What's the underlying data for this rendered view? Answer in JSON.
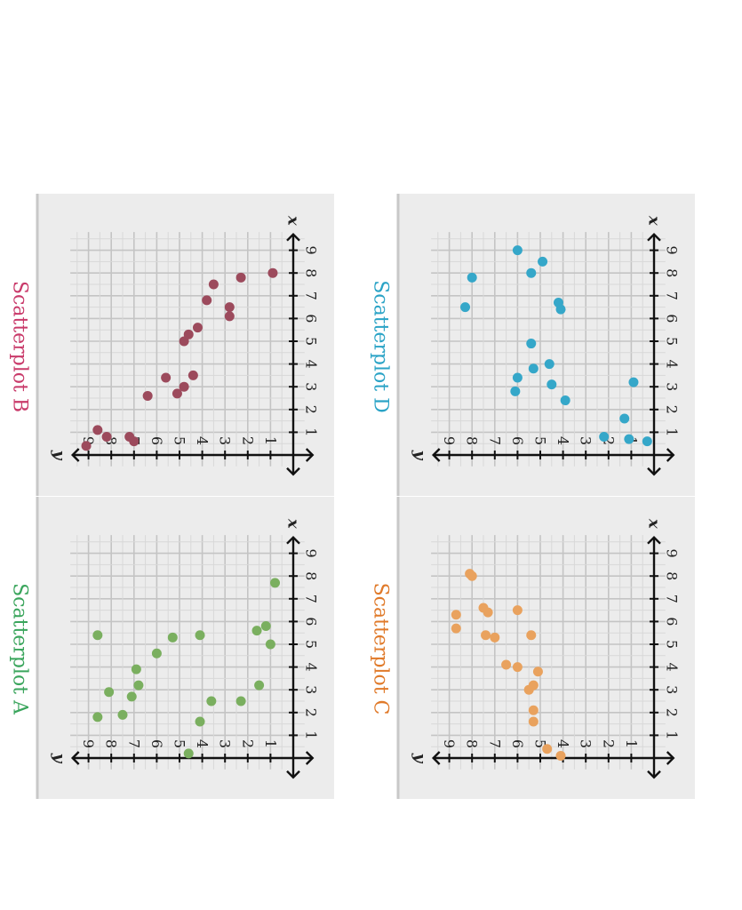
{
  "chart_data": [
    {
      "type": "scatter",
      "title": "Scatterplot A",
      "color": "#7aaf5f",
      "title_color": "#3aa55c",
      "xlabel": "x",
      "ylabel": "y",
      "xlim": [
        0,
        9
      ],
      "ylim": [
        0,
        9
      ],
      "x_ticks": [
        1,
        2,
        3,
        4,
        5,
        6,
        7,
        8,
        9
      ],
      "y_ticks": [
        1,
        2,
        3,
        4,
        5,
        6,
        7,
        8,
        9
      ],
      "grid": true,
      "points": [
        {
          "x": 0.2,
          "y": 4.6
        },
        {
          "x": 1.8,
          "y": 8.6
        },
        {
          "x": 1.9,
          "y": 7.5
        },
        {
          "x": 1.6,
          "y": 4.1
        },
        {
          "x": 2.5,
          "y": 3.6
        },
        {
          "x": 2.5,
          "y": 2.3
        },
        {
          "x": 2.7,
          "y": 7.1
        },
        {
          "x": 2.9,
          "y": 8.1
        },
        {
          "x": 3.2,
          "y": 6.8
        },
        {
          "x": 3.2,
          "y": 1.5
        },
        {
          "x": 3.9,
          "y": 6.9
        },
        {
          "x": 4.6,
          "y": 6.0
        },
        {
          "x": 5.0,
          "y": 1.0
        },
        {
          "x": 5.3,
          "y": 5.3
        },
        {
          "x": 5.4,
          "y": 4.1
        },
        {
          "x": 5.4,
          "y": 8.6
        },
        {
          "x": 5.6,
          "y": 1.6
        },
        {
          "x": 5.8,
          "y": 1.2
        },
        {
          "x": 7.7,
          "y": 0.8
        }
      ]
    },
    {
      "type": "scatter",
      "title": "Scatterplot B",
      "color": "#9c4a5c",
      "title_color": "#c93a6a",
      "xlabel": "x",
      "ylabel": "y",
      "xlim": [
        0,
        9
      ],
      "ylim": [
        0,
        9
      ],
      "x_ticks": [
        1,
        2,
        3,
        4,
        5,
        6,
        7,
        8,
        9
      ],
      "y_ticks": [
        1,
        2,
        3,
        4,
        5,
        6,
        7,
        8,
        9
      ],
      "grid": true,
      "points": [
        {
          "x": 0.4,
          "y": 9.1
        },
        {
          "x": 0.6,
          "y": 7.0
        },
        {
          "x": 0.8,
          "y": 8.2
        },
        {
          "x": 0.8,
          "y": 7.2
        },
        {
          "x": 1.1,
          "y": 8.6
        },
        {
          "x": 2.6,
          "y": 6.4
        },
        {
          "x": 2.7,
          "y": 5.1
        },
        {
          "x": 3.0,
          "y": 4.8
        },
        {
          "x": 3.4,
          "y": 5.6
        },
        {
          "x": 3.5,
          "y": 4.4
        },
        {
          "x": 5.0,
          "y": 4.8
        },
        {
          "x": 5.3,
          "y": 4.6
        },
        {
          "x": 5.6,
          "y": 4.2
        },
        {
          "x": 6.1,
          "y": 2.8
        },
        {
          "x": 6.5,
          "y": 2.8
        },
        {
          "x": 6.8,
          "y": 3.8
        },
        {
          "x": 7.5,
          "y": 3.5
        },
        {
          "x": 7.8,
          "y": 2.3
        },
        {
          "x": 8.0,
          "y": 0.9
        }
      ]
    },
    {
      "type": "scatter",
      "title": "Scatterplot C",
      "color": "#e9a25e",
      "title_color": "#e07a2a",
      "xlabel": "x",
      "ylabel": "y",
      "xlim": [
        0,
        9
      ],
      "ylim": [
        0,
        9
      ],
      "x_ticks": [
        1,
        2,
        3,
        4,
        5,
        6,
        7,
        8,
        9
      ],
      "y_ticks": [
        1,
        2,
        3,
        4,
        5,
        6,
        7,
        8,
        9
      ],
      "grid": true,
      "points": [
        {
          "x": 0.1,
          "y": 4.1
        },
        {
          "x": 0.4,
          "y": 4.7
        },
        {
          "x": 1.6,
          "y": 5.3
        },
        {
          "x": 2.1,
          "y": 5.3
        },
        {
          "x": 3.0,
          "y": 5.5
        },
        {
          "x": 3.2,
          "y": 5.3
        },
        {
          "x": 3.8,
          "y": 5.1
        },
        {
          "x": 4.0,
          "y": 6.0
        },
        {
          "x": 4.1,
          "y": 6.5
        },
        {
          "x": 5.3,
          "y": 7.0
        },
        {
          "x": 5.4,
          "y": 7.4
        },
        {
          "x": 5.4,
          "y": 5.4
        },
        {
          "x": 5.7,
          "y": 8.7
        },
        {
          "x": 6.3,
          "y": 8.7
        },
        {
          "x": 6.4,
          "y": 7.3
        },
        {
          "x": 6.5,
          "y": 6.0
        },
        {
          "x": 6.6,
          "y": 7.5
        },
        {
          "x": 8.0,
          "y": 8.0
        },
        {
          "x": 8.1,
          "y": 8.1
        }
      ]
    },
    {
      "type": "scatter",
      "title": "Scatterplot D",
      "color": "#35a7c9",
      "title_color": "#2aa3c6",
      "xlabel": "x",
      "ylabel": "y",
      "xlim": [
        0,
        9
      ],
      "ylim": [
        0,
        9
      ],
      "x_ticks": [
        1,
        2,
        3,
        4,
        5,
        6,
        7,
        8,
        9
      ],
      "y_ticks": [
        1,
        2,
        3,
        4,
        5,
        6,
        7,
        8,
        9
      ],
      "grid": true,
      "points": [
        {
          "x": 0.6,
          "y": 0.3
        },
        {
          "x": 0.7,
          "y": 1.1
        },
        {
          "x": 0.8,
          "y": 2.2
        },
        {
          "x": 1.6,
          "y": 1.3
        },
        {
          "x": 2.4,
          "y": 3.9
        },
        {
          "x": 2.8,
          "y": 6.1
        },
        {
          "x": 3.2,
          "y": 0.9
        },
        {
          "x": 3.1,
          "y": 4.5
        },
        {
          "x": 3.4,
          "y": 6.0
        },
        {
          "x": 3.8,
          "y": 5.3
        },
        {
          "x": 4.0,
          "y": 4.6
        },
        {
          "x": 4.9,
          "y": 5.4
        },
        {
          "x": 6.4,
          "y": 4.1
        },
        {
          "x": 6.5,
          "y": 8.3
        },
        {
          "x": 6.7,
          "y": 4.2
        },
        {
          "x": 7.8,
          "y": 8.0
        },
        {
          "x": 8.0,
          "y": 5.4
        },
        {
          "x": 8.5,
          "y": 4.9
        },
        {
          "x": 9.0,
          "y": 6.0
        }
      ]
    }
  ]
}
